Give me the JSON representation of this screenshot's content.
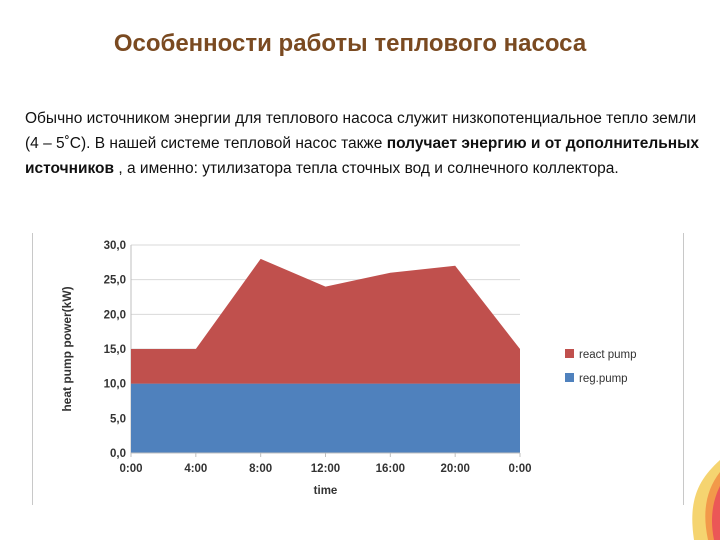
{
  "slide": {
    "title": "Особенности работы теплового насоса",
    "paragraph": {
      "part1": "Обычно источником энергии для теплового насоса служит низкопотенциальное тепло земли (4 – 5˚С). В нашей системе тепловой насос также ",
      "bold": "получает энергию и от дополнительных источников",
      "part2": " , а именно: утилизатора тепла сточных вод и солнечного коллектора."
    }
  },
  "chart_data": {
    "type": "area",
    "stacked": true,
    "xlabel": "time",
    "ylabel": "heat pump power(kW)",
    "x": [
      "0:00",
      "4:00",
      "8:00",
      "12:00",
      "16:00",
      "20:00",
      "0:00"
    ],
    "x_hours": [
      0,
      4,
      8,
      12,
      16,
      20,
      24
    ],
    "ylim": [
      0,
      30
    ],
    "yticks": [
      "0,0",
      "5,0",
      "10,0",
      "15,0",
      "20,0",
      "25,0",
      "30,0"
    ],
    "grid": true,
    "legend": "right",
    "series": [
      {
        "name": "reg.pump",
        "color": "#4f81bd",
        "values": [
          10,
          10,
          10,
          10,
          10,
          10,
          10
        ]
      },
      {
        "name": "react pump",
        "color": "#c0504d",
        "values": [
          5,
          5,
          18,
          14,
          16,
          17,
          5
        ]
      }
    ]
  },
  "colors": {
    "title": "#7a4a21",
    "grid": "#d9d9d9",
    "plot_bg": "#ffffff"
  }
}
